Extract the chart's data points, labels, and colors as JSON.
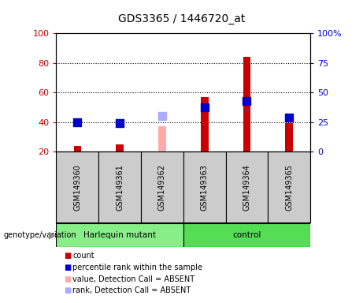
{
  "title": "GDS3365 / 1446720_at",
  "samples": [
    "GSM149360",
    "GSM149361",
    "GSM149362",
    "GSM149363",
    "GSM149364",
    "GSM149365"
  ],
  "group_labels": [
    "Harlequin mutant",
    "control"
  ],
  "count_values": [
    24,
    25,
    null,
    57,
    84,
    39
  ],
  "count_color": "#cc0000",
  "rank_values": [
    40,
    39,
    null,
    50,
    54,
    43
  ],
  "rank_color": "#0000cc",
  "absent_value_values": [
    null,
    null,
    37,
    null,
    null,
    null
  ],
  "absent_value_color": "#ffaaaa",
  "absent_rank_values": [
    null,
    null,
    44,
    null,
    null,
    null
  ],
  "absent_rank_color": "#aaaaff",
  "ylim_left": [
    20,
    100
  ],
  "ylim_right": [
    0,
    100
  ],
  "yticks_left": [
    20,
    40,
    60,
    80,
    100
  ],
  "yticks_right": [
    0,
    25,
    50,
    75,
    100
  ],
  "ytick_labels_right": [
    "0",
    "25",
    "50",
    "75",
    "100%"
  ],
  "ytick_labels_left": [
    "20",
    "40",
    "60",
    "80",
    "100"
  ],
  "left_tick_color": "#cc0000",
  "right_tick_color": "#0000cc",
  "dot_size": 55,
  "background_plot": "#ffffff",
  "background_sample": "#cccccc",
  "background_group_harlequin": "#88ee88",
  "background_group_control": "#55dd55",
  "legend_items": [
    "count",
    "percentile rank within the sample",
    "value, Detection Call = ABSENT",
    "rank, Detection Call = ABSENT"
  ],
  "legend_colors": [
    "#cc0000",
    "#0000cc",
    "#ffaaaa",
    "#aaaaff"
  ],
  "bar_width": 0.18
}
